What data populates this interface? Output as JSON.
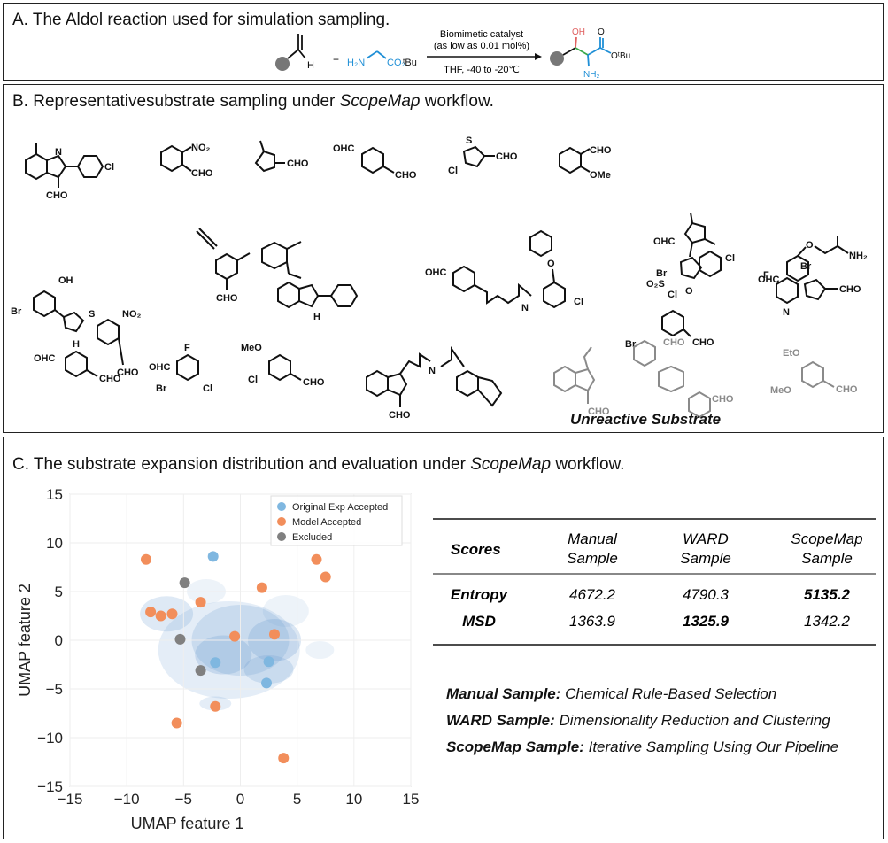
{
  "panelA": {
    "title": "A. The Aldol reaction used for simulation sampling.",
    "reactant_label_H": "H",
    "plus": "+",
    "amine_label": "H₂N",
    "ester_label": "CO₂",
    "tbu": "ᵗBu",
    "catalyst_line1": "Biomimetic catalyst",
    "catalyst_line2": "(as low as 0.01 mol%)",
    "conditions": "THF, -40 to -20℃",
    "product_oh": "OH",
    "product_o": "O",
    "product_otbu": "OᵗBu",
    "product_nh2": "NH₂"
  },
  "panelB": {
    "title_prefix": "B. Representativesubstrate sampling under ",
    "title_italic": "ScopeMap",
    "title_suffix": " workflow.",
    "unreactive_label": "Unreactive Substrate",
    "labels": {
      "cl": "Cl",
      "cho": "CHO",
      "no2": "NO₂",
      "ohc": "OHC",
      "ome": "OMe",
      "nh2": "NH₂",
      "oh": "OH",
      "br": "Br",
      "s": "S",
      "n": "N",
      "h": "H",
      "o": "O",
      "so2": "O₂S",
      "f": "F",
      "meo": "MeO",
      "eto": "EtO",
      "nh": "N",
      "nh_h": "H",
      "n_h": "H"
    }
  },
  "panelC": {
    "title_prefix": "C. The substrate expansion distribution and evaluation under ",
    "title_italic": "ScopeMap",
    "title_suffix": " workflow.",
    "table": {
      "headers": [
        {
          "line1": "Scores",
          "line2": ""
        },
        {
          "line1": "Manual",
          "line2": "Sample"
        },
        {
          "line1": "WARD",
          "line2": "Sample"
        },
        {
          "line1": "ScopeMap",
          "line2": "Sample"
        }
      ],
      "rows": [
        {
          "label": "Entropy",
          "manual": "4672.2",
          "ward": "4790.3",
          "scopemap": "5135.2"
        },
        {
          "label": "MSD",
          "manual": "1363.9",
          "ward": "1325.9",
          "scopemap": "1342.2"
        }
      ]
    },
    "definitions": [
      {
        "term": "Manual Sample:",
        "desc": "Chemical Rule-Based Selection"
      },
      {
        "term": "WARD Sample:",
        "desc": "Dimensionality Reduction and Clustering"
      },
      {
        "term": "ScopeMap Sample:",
        "desc": "Iterative Sampling Using Our Pipeline"
      }
    ]
  },
  "chart_data": {
    "type": "scatter",
    "xlabel": "UMAP feature 1",
    "ylabel": "UMAP feature 2",
    "xlim": [
      -15,
      15
    ],
    "ylim": [
      -15,
      15
    ],
    "xticks": [
      "−15",
      "−10",
      "−5",
      "0",
      "5",
      "10",
      "15"
    ],
    "yticks": [
      "15",
      "10",
      "5",
      "0",
      "−5",
      "−10",
      "−15"
    ],
    "grid": true,
    "legend_position": "top-right",
    "series": [
      {
        "name": "Original Exp Accepted",
        "color": "#7fb7e0",
        "points": [
          [
            -2.4,
            8.6
          ],
          [
            -2.2,
            -2.3
          ],
          [
            2.5,
            -2.2
          ],
          [
            2.3,
            -4.4
          ]
        ]
      },
      {
        "name": "Model Accepted",
        "color": "#f28e5b",
        "points": [
          [
            -8.3,
            8.3
          ],
          [
            -7.9,
            2.9
          ],
          [
            -7.0,
            2.5
          ],
          [
            -6.0,
            2.7
          ],
          [
            -3.5,
            3.9
          ],
          [
            -0.5,
            0.4
          ],
          [
            1.9,
            5.4
          ],
          [
            3.0,
            0.6
          ],
          [
            6.7,
            8.3
          ],
          [
            7.5,
            6.5
          ],
          [
            -2.2,
            -6.8
          ],
          [
            -5.6,
            -8.5
          ],
          [
            3.8,
            -12.1
          ]
        ]
      },
      {
        "name": "Excluded",
        "color": "#808080",
        "points": [
          [
            -4.9,
            5.9
          ],
          [
            -5.3,
            0.1
          ],
          [
            -3.5,
            -3.1
          ]
        ]
      }
    ]
  }
}
